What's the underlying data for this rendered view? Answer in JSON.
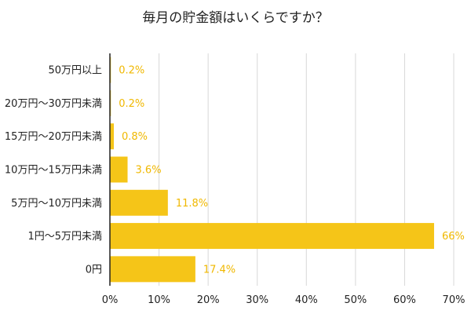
{
  "chart_data": {
    "type": "bar",
    "orientation": "horizontal",
    "title": "毎月の貯金額はいくらですか？",
    "categories": [
      "50万円以上",
      "20万円～30万円未満",
      "15万円～20万円未満",
      "10万円～15万円未満",
      "5万円～10万円未満",
      "1円～5万円未満",
      "0円"
    ],
    "values": [
      0.2,
      0.2,
      0.8,
      3.6,
      11.8,
      66,
      17.4
    ],
    "value_labels": [
      "0.2%",
      "0.2%",
      "0.8%",
      "3.6%",
      "11.8%",
      "66%",
      "17.4%"
    ],
    "xlim": [
      0,
      70
    ],
    "x_ticks": [
      0,
      10,
      20,
      30,
      40,
      50,
      60,
      70
    ],
    "x_tick_labels": [
      "0%",
      "10%",
      "20%",
      "30%",
      "40%",
      "50%",
      "60%",
      "70%"
    ],
    "xlabel": "",
    "ylabel": "",
    "grid": "vertical",
    "legend": "none",
    "colors": {
      "bar": "#f5c518",
      "data_label": "#f0b800",
      "grid": "#d8d8d8",
      "axis": "#222222",
      "text": "#222222"
    }
  }
}
